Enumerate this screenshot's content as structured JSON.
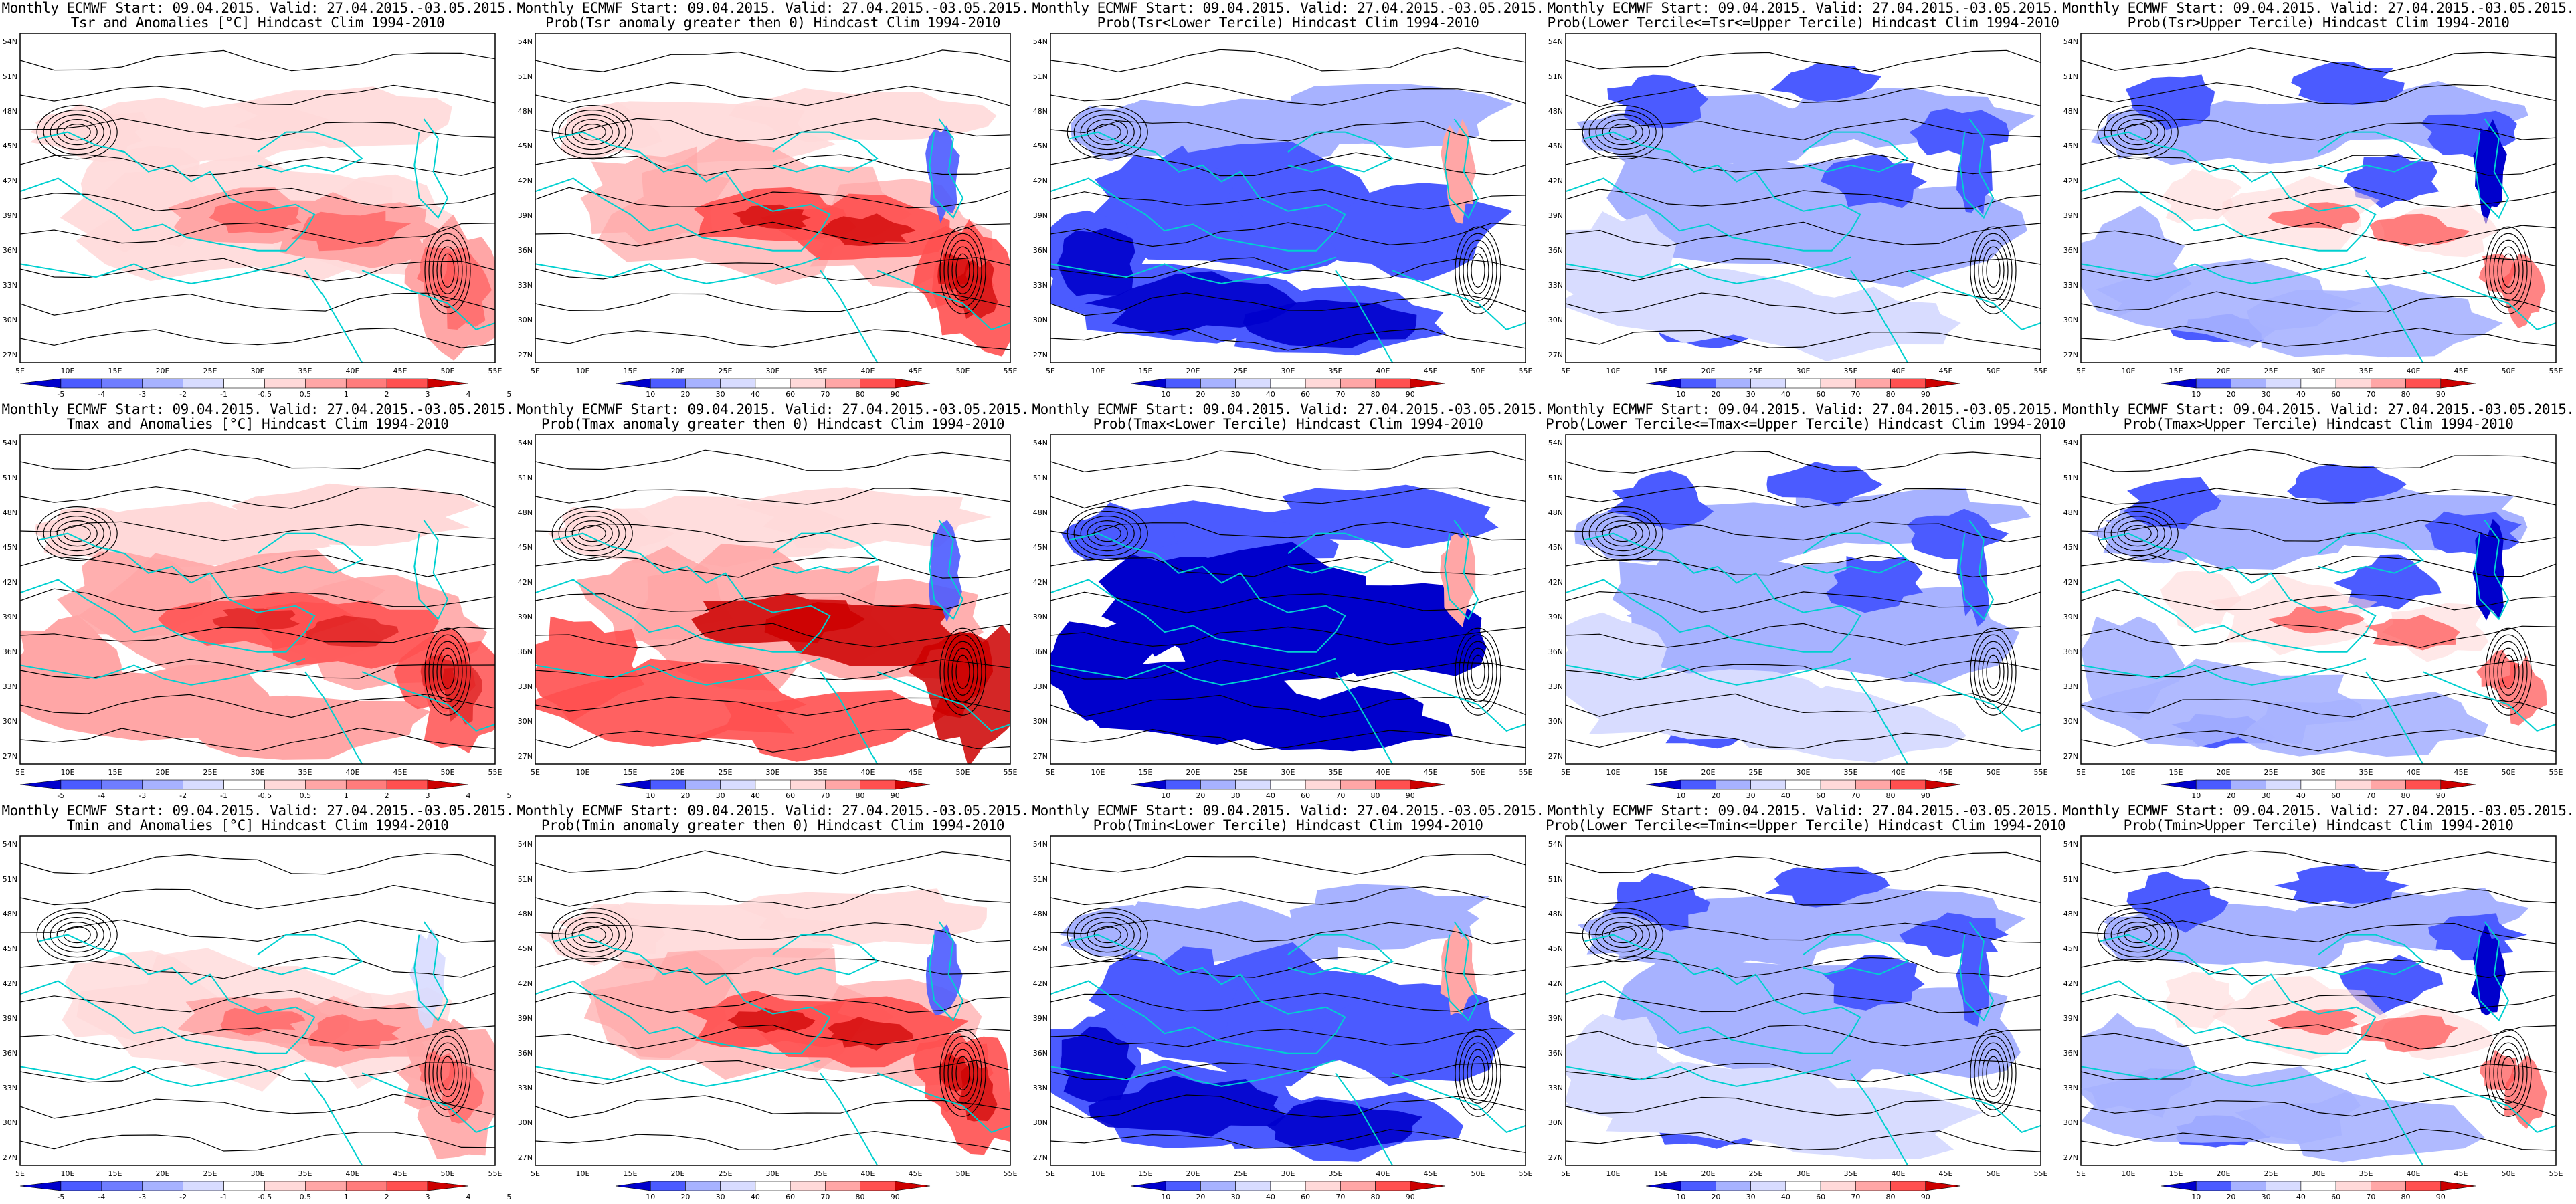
{
  "colors": {
    "blue_dark": "#0000cc",
    "blue_mid": "#4b5bff",
    "blue_light": "#a7b2ff",
    "blue_pale": "#d8dcff",
    "red_pale": "#ffd9d9",
    "red_light": "#ffa6a6",
    "red_mid": "#ff5050",
    "red_dark": "#cc0000",
    "coast": "#00d0d0",
    "contour": "#000000"
  },
  "axes": {
    "x_ticks": [
      "5E",
      "10E",
      "15E",
      "20E",
      "25E",
      "30E",
      "35E",
      "40E",
      "45E",
      "50E",
      "55E"
    ],
    "y_ticks": [
      "54N",
      "51N",
      "48N",
      "45N",
      "42N",
      "39N",
      "36N",
      "33N",
      "30N",
      "27N"
    ]
  },
  "colorbars": {
    "anomaly": [
      "-5",
      "-4",
      "-3",
      "-2",
      "-1",
      "-0.5",
      "0.5",
      "1",
      "2",
      "3",
      "4",
      "5"
    ],
    "probability": [
      "10",
      "20",
      "30",
      "40",
      "60",
      "70",
      "80",
      "90"
    ]
  },
  "panels": [
    {
      "line1": "Monthly ECMWF Start: 09.04.2015. Valid: 27.04.2015.-03.05.2015.",
      "line2": "Tsr and Anomalies [°C] Hindcast Clim 1994-2010",
      "bar": "anomaly",
      "scheme": "anomaly"
    },
    {
      "line1": "Monthly ECMWF Start: 09.04.2015. Valid: 27.04.2015.-03.05.2015.",
      "line2": "Prob(Tsr anomaly greater then 0) Hindcast Clim 1994-2010",
      "bar": "probability",
      "scheme": "warm_prob"
    },
    {
      "line1": "Monthly ECMWF Start: 09.04.2015. Valid: 27.04.2015.-03.05.2015.",
      "line2": "Prob(Tsr<Lower Tercile) Hindcast Clim 1994-2010",
      "bar": "probability",
      "scheme": "lower"
    },
    {
      "line1": "Monthly ECMWF Start: 09.04.2015. Valid: 27.04.2015.-03.05.2015.",
      "line2": "Prob(Lower Tercile<=Tsr<=Upper Tercile) Hindcast Clim 1994-2010",
      "bar": "probability",
      "scheme": "middle"
    },
    {
      "line1": "Monthly ECMWF Start: 09.04.2015. Valid: 27.04.2015.-03.05.2015.",
      "line2": "Prob(Tsr>Upper Tercile) Hindcast Clim 1994-2010",
      "bar": "probability",
      "scheme": "upper"
    },
    {
      "line1": "Monthly ECMWF Start: 09.04.2015. Valid: 27.04.2015.-03.05.2015.",
      "line2": "Tmax and Anomalies [°C] Hindcast Clim 1994-2010",
      "bar": "anomaly",
      "scheme": "anomaly_strong"
    },
    {
      "line1": "Monthly ECMWF Start: 09.04.2015. Valid: 27.04.2015.-03.05.2015.",
      "line2": "Prob(Tmax anomaly greater then 0) Hindcast Clim 1994-2010",
      "bar": "probability",
      "scheme": "warm_prob_strong"
    },
    {
      "line1": "Monthly ECMWF Start: 09.04.2015. Valid: 27.04.2015.-03.05.2015.",
      "line2": "Prob(Tmax<Lower Tercile) Hindcast Clim 1994-2010",
      "bar": "probability",
      "scheme": "lower_strong"
    },
    {
      "line1": "Monthly ECMWF Start: 09.04.2015. Valid: 27.04.2015.-03.05.2015.",
      "line2": "Prob(Lower Tercile<=Tmax<=Upper Tercile) Hindcast Clim 1994-2010",
      "bar": "probability",
      "scheme": "middle"
    },
    {
      "line1": "Monthly ECMWF Start: 09.04.2015. Valid: 27.04.2015.-03.05.2015.",
      "line2": "Prob(Tmax>Upper Tercile) Hindcast Clim 1994-2010",
      "bar": "probability",
      "scheme": "upper"
    },
    {
      "line1": "Monthly ECMWF Start: 09.04.2015. Valid: 27.04.2015.-03.05.2015.",
      "line2": "Tmin and Anomalies [°C] Hindcast Clim 1994-2010",
      "bar": "anomaly",
      "scheme": "anomaly_weak"
    },
    {
      "line1": "Monthly ECMWF Start: 09.04.2015. Valid: 27.04.2015.-03.05.2015.",
      "line2": "Prob(Tmin anomaly greater then 0) Hindcast Clim 1994-2010",
      "bar": "probability",
      "scheme": "warm_prob"
    },
    {
      "line1": "Monthly ECMWF Start: 09.04.2015. Valid: 27.04.2015.-03.05.2015.",
      "line2": "Prob(Tmin<Lower Tercile) Hindcast Clim 1994-2010",
      "bar": "probability",
      "scheme": "lower"
    },
    {
      "line1": "Monthly ECMWF Start: 09.04.2015. Valid: 27.04.2015.-03.05.2015.",
      "line2": "Prob(Lower Tercile<=Tmin<=Upper Tercile) Hindcast Clim 1994-2010",
      "bar": "probability",
      "scheme": "middle"
    },
    {
      "line1": "Monthly ECMWF Start: 09.04.2015. Valid: 27.04.2015.-03.05.2015.",
      "line2": "Prob(Tmin>Upper Tercile) Hindcast Clim 1994-2010",
      "bar": "probability",
      "scheme": "upper"
    }
  ]
}
